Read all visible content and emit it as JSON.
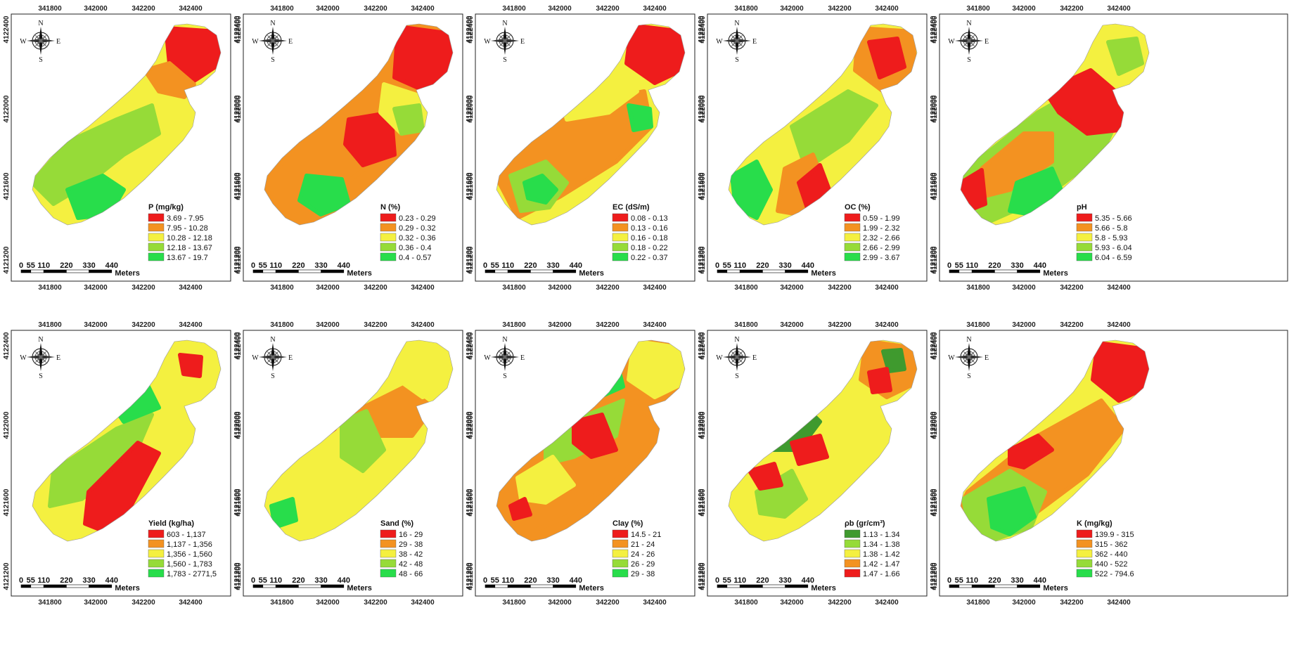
{
  "axis_ticks": {
    "x": [
      "341800",
      "342000",
      "342200",
      "342400"
    ],
    "y": [
      "4122400",
      "4122000",
      "4121600",
      "4121200"
    ]
  },
  "scale_bar": {
    "ticks": [
      "0",
      "55",
      "110",
      "220",
      "330",
      "440"
    ],
    "unit": "Meters"
  },
  "compass": {
    "n": "N",
    "s": "S",
    "e": "E",
    "w": "W"
  },
  "maps": [
    {
      "id": "p",
      "legend_title": "P (mg/kg)",
      "classes": [
        {
          "label": "3.69 - 7.95",
          "color": "#ee1c1c"
        },
        {
          "label": "7.95 - 10.28",
          "color": "#f39221"
        },
        {
          "label": "10.28 - 12.18",
          "color": "#f4f040"
        },
        {
          "label": "12.18 - 13.67",
          "color": "#96db38"
        },
        {
          "label": "13.67 - 19.7",
          "color": "#28dd4b"
        }
      ]
    },
    {
      "id": "n",
      "legend_title": "N (%)",
      "classes": [
        {
          "label": "0.23 - 0.29",
          "color": "#ee1c1c"
        },
        {
          "label": "0.29 - 0.32",
          "color": "#f39221"
        },
        {
          "label": "0.32 - 0.36",
          "color": "#f4f040"
        },
        {
          "label": "0.36 - 0.4",
          "color": "#96db38"
        },
        {
          "label": "0.4 - 0.57",
          "color": "#28dd4b"
        }
      ]
    },
    {
      "id": "ec",
      "legend_title": "EC (dS/m)",
      "classes": [
        {
          "label": "0.08 - 0.13",
          "color": "#ee1c1c"
        },
        {
          "label": "0.13 - 0.16",
          "color": "#f39221"
        },
        {
          "label": "0.16 - 0.18",
          "color": "#f4f040"
        },
        {
          "label": "0.18 - 0.22",
          "color": "#96db38"
        },
        {
          "label": "0.22 - 0.37",
          "color": "#28dd4b"
        }
      ]
    },
    {
      "id": "oc",
      "legend_title": "OC (%)",
      "classes": [
        {
          "label": "0.59 - 1.99",
          "color": "#ee1c1c"
        },
        {
          "label": "1.99 - 2.32",
          "color": "#f39221"
        },
        {
          "label": "2.32 - 2.66",
          "color": "#f4f040"
        },
        {
          "label": "2.66 - 2.99",
          "color": "#96db38"
        },
        {
          "label": "2.99 - 3.67",
          "color": "#28dd4b"
        }
      ]
    },
    {
      "id": "ph",
      "legend_title": "pH",
      "classes": [
        {
          "label": "5.35 - 5.66",
          "color": "#ee1c1c"
        },
        {
          "label": "5.66 - 5.8",
          "color": "#f39221"
        },
        {
          "label": "5.8 - 5.93",
          "color": "#f4f040"
        },
        {
          "label": "5.93 - 6.04",
          "color": "#96db38"
        },
        {
          "label": "6.04 - 6.59",
          "color": "#28dd4b"
        }
      ]
    },
    {
      "id": "yield",
      "legend_title": "Yield (kg/ha)",
      "classes": [
        {
          "label": "603 - 1,137",
          "color": "#ee1c1c"
        },
        {
          "label": "1,137 - 1,356",
          "color": "#f39221"
        },
        {
          "label": "1,356 - 1,560",
          "color": "#f4f040"
        },
        {
          "label": "1,560 - 1,783",
          "color": "#96db38"
        },
        {
          "label": "1,783 - 2771,5",
          "color": "#28dd4b"
        }
      ]
    },
    {
      "id": "sand",
      "legend_title": "Sand (%)",
      "classes": [
        {
          "label": "16 - 29",
          "color": "#ee1c1c"
        },
        {
          "label": "29 - 38",
          "color": "#f39221"
        },
        {
          "label": "38 - 42",
          "color": "#f4f040"
        },
        {
          "label": "42 - 48",
          "color": "#96db38"
        },
        {
          "label": "48 - 66",
          "color": "#28dd4b"
        }
      ]
    },
    {
      "id": "clay",
      "legend_title": "Clay (%)",
      "classes": [
        {
          "label": "14.5 - 21",
          "color": "#ee1c1c"
        },
        {
          "label": "21 - 24",
          "color": "#f39221"
        },
        {
          "label": "24 - 26",
          "color": "#f4f040"
        },
        {
          "label": "26 - 29",
          "color": "#96db38"
        },
        {
          "label": "29 - 38",
          "color": "#28dd4b"
        }
      ]
    },
    {
      "id": "bd",
      "legend_title": "ρb (gr/cm³)",
      "classes": [
        {
          "label": "1.13 - 1.34",
          "color": "#3f9a2e"
        },
        {
          "label": "1.34 - 1.38",
          "color": "#96db38"
        },
        {
          "label": "1.38 - 1.42",
          "color": "#f4f040"
        },
        {
          "label": "1.42 - 1.47",
          "color": "#f39221"
        },
        {
          "label": "1.47 - 1.66",
          "color": "#ee1c1c"
        }
      ]
    },
    {
      "id": "k",
      "legend_title": "K (mg/kg)",
      "classes": [
        {
          "label": "139.9 - 315",
          "color": "#ee1c1c"
        },
        {
          "label": "315 - 362",
          "color": "#f39221"
        },
        {
          "label": "362 - 440",
          "color": "#f4f040"
        },
        {
          "label": "440 - 522",
          "color": "#96db38"
        },
        {
          "label": "522 - 794.6",
          "color": "#28dd4b"
        }
      ]
    }
  ]
}
